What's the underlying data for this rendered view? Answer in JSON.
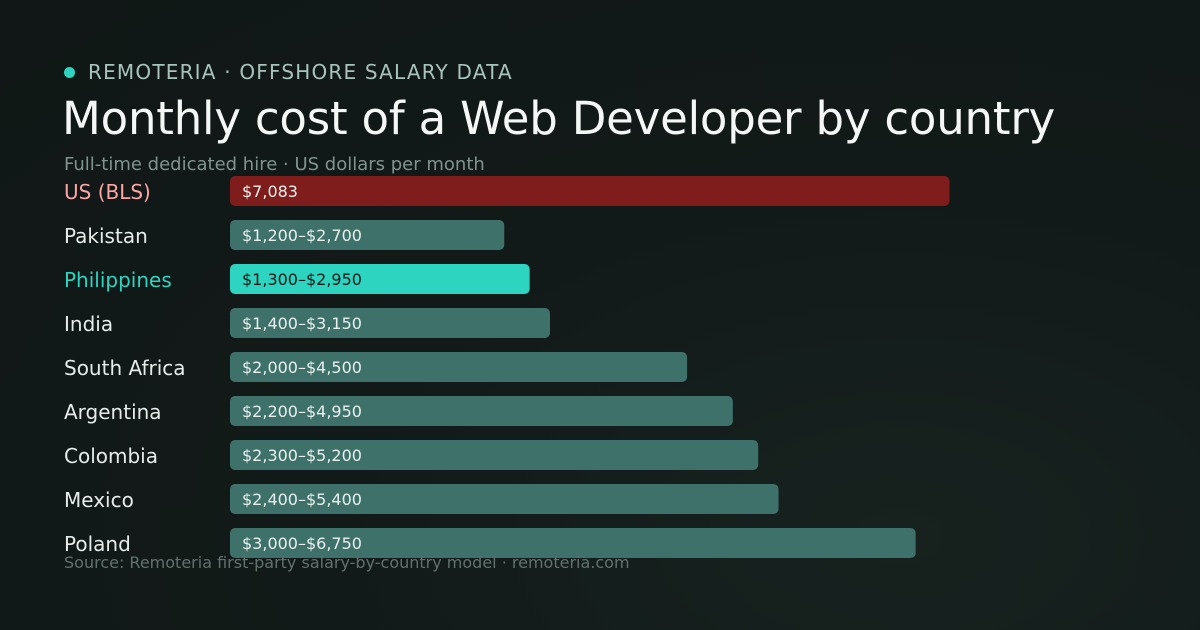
{
  "header": {
    "brand": "REMOTERIA · OFFSHORE SALARY DATA",
    "title": "Monthly cost of a Web Developer by country",
    "subtitle": "Full-time dedicated hire · US dollars per month"
  },
  "footer": {
    "source": "Source: Remoteria first-party salary-by-country model · remoteria.com"
  },
  "colors": {
    "accent": "#2dd4bf",
    "us": "#7f1d1d",
    "us_label": "#fca5a5",
    "default_bar": "#3f716b",
    "label": "#e6ecea",
    "value_text": "#e9f0ee",
    "value_text_highlight": "#0e1a18"
  },
  "chart_data": {
    "type": "bar",
    "orientation": "horizontal",
    "title": "Monthly cost of a Web Developer by country",
    "subtitle": "Full-time dedicated hire · US dollars per month",
    "unit": "USD per month",
    "xlim": [
      0,
      7600
    ],
    "categories": [
      "US (BLS)",
      "Pakistan",
      "Philippines",
      "India",
      "South Africa",
      "Argentina",
      "Colombia",
      "Mexico",
      "Poland"
    ],
    "bars": [
      {
        "category": "US (BLS)",
        "value": 7083,
        "label": "$7,083",
        "style": "us"
      },
      {
        "category": "Pakistan",
        "low": 1200,
        "high": 2700,
        "value": 2700,
        "label": "$1,200–$2,700",
        "style": "default"
      },
      {
        "category": "Philippines",
        "low": 1300,
        "high": 2950,
        "value": 2950,
        "label": "$1,300–$2,950",
        "style": "highlight"
      },
      {
        "category": "India",
        "low": 1400,
        "high": 3150,
        "value": 3150,
        "label": "$1,400–$3,150",
        "style": "default"
      },
      {
        "category": "South Africa",
        "low": 2000,
        "high": 4500,
        "value": 4500,
        "label": "$2,000–$4,500",
        "style": "default"
      },
      {
        "category": "Argentina",
        "low": 2200,
        "high": 4950,
        "value": 4950,
        "label": "$2,200–$4,950",
        "style": "default"
      },
      {
        "category": "Colombia",
        "low": 2300,
        "high": 5200,
        "value": 5200,
        "label": "$2,300–$5,200",
        "style": "default"
      },
      {
        "category": "Mexico",
        "low": 2400,
        "high": 5400,
        "value": 5400,
        "label": "$2,400–$5,400",
        "style": "default"
      },
      {
        "category": "Poland",
        "low": 3000,
        "high": 6750,
        "value": 6750,
        "label": "$3,000–$6,750",
        "style": "default"
      }
    ],
    "grid": false,
    "legend": "none"
  }
}
